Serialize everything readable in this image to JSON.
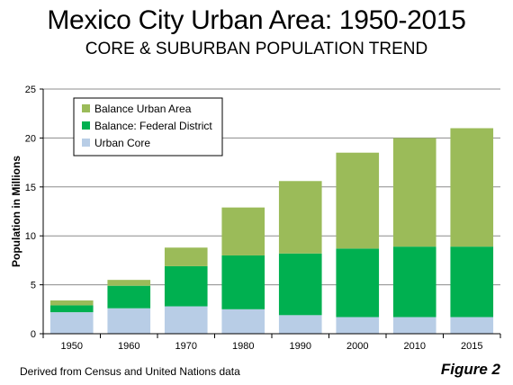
{
  "title": "Mexico City Urban Area: 1950-2015",
  "subtitle": "CORE & SUBURBAN POPULATION TREND",
  "footer_source": "Derived from Census and United Nations data",
  "footer_figure": "Figure 2",
  "colors": {
    "urban_core": "#b8cde6",
    "federal_district": "#00b050",
    "balance_urban": "#9bbb59"
  },
  "chart_data": {
    "type": "bar",
    "stacked": true,
    "categories": [
      "1950",
      "1960",
      "1970",
      "1980",
      "1990",
      "2000",
      "2010",
      "2015"
    ],
    "series": [
      {
        "name": "Urban Core",
        "color": "#b8cde6",
        "values": [
          2.2,
          2.6,
          2.8,
          2.5,
          1.9,
          1.7,
          1.7,
          1.7
        ]
      },
      {
        "name": "Balance: Federal District",
        "color": "#00b050",
        "values": [
          0.7,
          2.3,
          4.1,
          5.5,
          6.3,
          7.0,
          7.2,
          7.2
        ]
      },
      {
        "name": "Balance Urban Area",
        "color": "#9bbb59",
        "values": [
          0.5,
          0.6,
          1.9,
          4.9,
          7.4,
          9.8,
          11.1,
          12.1
        ]
      }
    ],
    "ylabel": "Population in Millions",
    "xlabel": "",
    "ylim": [
      0,
      25
    ],
    "yticks": [
      "0",
      "5",
      "10",
      "15",
      "20",
      "25"
    ],
    "grid": true,
    "legend_position": "top-left",
    "legend_order": [
      "Balance Urban Area",
      "Balance: Federal District",
      "Urban Core"
    ]
  }
}
